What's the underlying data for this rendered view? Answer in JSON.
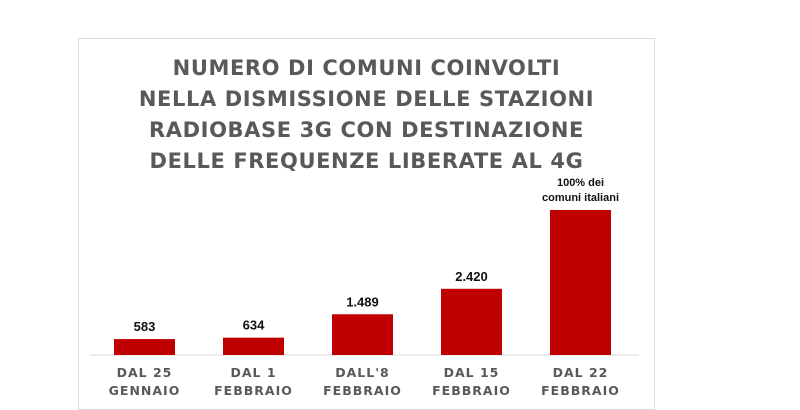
{
  "chart_data": {
    "type": "bar",
    "title_lines": [
      "NUMERO DI COMUNI COINVOLTI",
      "NELLA DISMISSIONE DELLE STAZIONI",
      "RADIOBASE 3G CON DESTINAZIONE",
      "DELLE FREQUENZE LIBERATE AL 4G"
    ],
    "categories": [
      [
        "DAL 25",
        "GENNAIO"
      ],
      [
        "DAL 1",
        "FEBBRAIO"
      ],
      [
        "DALL'8",
        "FEBBRAIO"
      ],
      [
        "DAL 15",
        "FEBBRAIO"
      ],
      [
        "DAL 22",
        "FEBBRAIO"
      ]
    ],
    "values": [
      583,
      634,
      1489,
      2420,
      5300
    ],
    "data_labels": [
      "583",
      "634",
      "1.489",
      "2.420",
      ""
    ],
    "annotation": {
      "bar_index": 4,
      "lines": [
        "100% dei",
        "comuni italiani"
      ]
    },
    "ylim": [
      0,
      5300
    ],
    "grid": false,
    "legend": "none",
    "colors": {
      "bar": "#c00000",
      "axis": "#d9d9d9",
      "title": "#595959",
      "tick_label": "#595959",
      "data_label": "#111111"
    }
  }
}
